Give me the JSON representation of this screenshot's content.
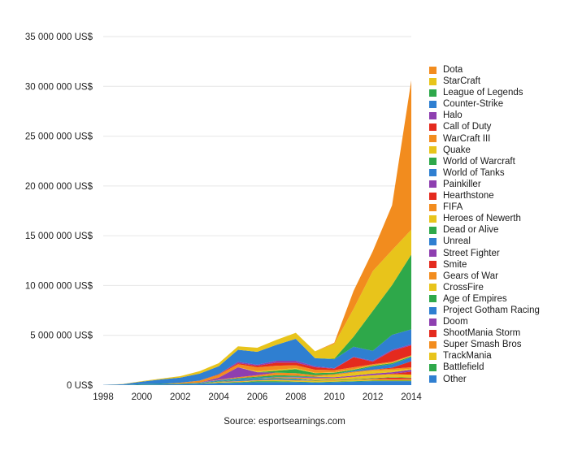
{
  "chart_data": {
    "type": "area",
    "stacked": true,
    "title": "",
    "xlabel": "",
    "ylabel": "",
    "source": "Source: esportsearnings.com",
    "ylim": [
      0,
      35000000
    ],
    "xlim": [
      1998,
      2014
    ],
    "x": [
      1998,
      1999,
      2000,
      2001,
      2002,
      2003,
      2004,
      2005,
      2006,
      2007,
      2008,
      2009,
      2010,
      2011,
      2012,
      2013,
      2014
    ],
    "y_ticks": [
      0,
      5000000,
      10000000,
      15000000,
      20000000,
      25000000,
      30000000,
      35000000
    ],
    "y_tick_labels": [
      "0 US$",
      "5 000 000 US$",
      "10 000 000 US$",
      "15 000 000 US$",
      "20 000 000 US$",
      "25 000 000 US$",
      "30 000 000 US$",
      "35 000 000 US$"
    ],
    "x_ticks": [
      1998,
      2000,
      2002,
      2004,
      2006,
      2008,
      2010,
      2012,
      2014
    ],
    "x_tick_labels": [
      "1998",
      "2000",
      "2002",
      "2004",
      "2006",
      "2008",
      "2010",
      "2012",
      "2014"
    ],
    "legend_position": "right",
    "series": [
      {
        "name": "Dota",
        "color": "#f28c1e",
        "values": [
          0,
          0,
          0,
          0,
          0,
          0,
          0,
          0,
          0,
          0,
          0,
          0,
          100000,
          1800000,
          2000000,
          4500000,
          15000000
        ]
      },
      {
        "name": "StarCraft",
        "color": "#e8c41b",
        "values": [
          0,
          20000,
          50000,
          80000,
          150000,
          250000,
          300000,
          350000,
          400000,
          500000,
          600000,
          700000,
          1500000,
          2800000,
          4000000,
          3500000,
          2500000
        ]
      },
      {
        "name": "League of Legends",
        "color": "#2ea84a",
        "values": [
          0,
          0,
          0,
          0,
          0,
          0,
          0,
          0,
          0,
          0,
          0,
          0,
          50000,
          1000000,
          4000000,
          5000000,
          7500000
        ]
      },
      {
        "name": "Counter-Strike",
        "color": "#2f7fd1",
        "values": [
          20000,
          80000,
          250000,
          450000,
          500000,
          700000,
          800000,
          1200000,
          1300000,
          1600000,
          2200000,
          800000,
          900000,
          1000000,
          1000000,
          1500000,
          1500000
        ]
      },
      {
        "name": "Halo",
        "color": "#8e3fb0",
        "values": [
          0,
          0,
          0,
          0,
          0,
          0,
          0,
          150000,
          100000,
          200000,
          200000,
          100000,
          50000,
          50000,
          100000,
          100000,
          100000
        ]
      },
      {
        "name": "Call of Duty",
        "color": "#e42a1e",
        "values": [
          0,
          0,
          0,
          0,
          0,
          0,
          50000,
          100000,
          150000,
          300000,
          250000,
          250000,
          150000,
          1000000,
          250000,
          1100000,
          1000000
        ]
      },
      {
        "name": "WarCraft III",
        "color": "#f28c1e",
        "values": [
          0,
          0,
          0,
          0,
          100000,
          200000,
          300000,
          300000,
          400000,
          400000,
          300000,
          300000,
          200000,
          200000,
          100000,
          100000,
          50000
        ]
      },
      {
        "name": "Quake",
        "color": "#e8c41b",
        "values": [
          0,
          0,
          0,
          0,
          0,
          0,
          0,
          0,
          100000,
          100000,
          100000,
          50000,
          50000,
          50000,
          50000,
          50000,
          50000
        ]
      },
      {
        "name": "World of Warcraft",
        "color": "#2ea84a",
        "values": [
          0,
          0,
          0,
          0,
          0,
          0,
          0,
          0,
          0,
          200000,
          400000,
          200000,
          150000,
          100000,
          100000,
          100000,
          100000
        ]
      },
      {
        "name": "World of Tanks",
        "color": "#2f7fd1",
        "values": [
          0,
          0,
          0,
          0,
          0,
          0,
          0,
          0,
          0,
          0,
          0,
          0,
          0,
          100000,
          300000,
          350000,
          400000
        ]
      },
      {
        "name": "Painkiller",
        "color": "#8e3fb0",
        "values": [
          0,
          0,
          0,
          0,
          0,
          0,
          200000,
          1000000,
          300000,
          0,
          0,
          0,
          0,
          0,
          0,
          0,
          0
        ]
      },
      {
        "name": "Hearthstone",
        "color": "#e42a1e",
        "values": [
          0,
          0,
          0,
          0,
          0,
          0,
          0,
          0,
          0,
          0,
          0,
          0,
          0,
          0,
          0,
          100000,
          600000
        ]
      },
      {
        "name": "FIFA",
        "color": "#f28c1e",
        "values": [
          0,
          0,
          0,
          0,
          0,
          0,
          50000,
          100000,
          150000,
          250000,
          250000,
          150000,
          100000,
          100000,
          100000,
          150000,
          150000
        ]
      },
      {
        "name": "Heroes of Newerth",
        "color": "#e8c41b",
        "values": [
          0,
          0,
          0,
          0,
          0,
          0,
          0,
          0,
          0,
          0,
          0,
          0,
          200000,
          300000,
          300000,
          200000,
          100000
        ]
      },
      {
        "name": "Dead or Alive",
        "color": "#2ea84a",
        "values": [
          0,
          0,
          0,
          0,
          0,
          0,
          0,
          50000,
          100000,
          150000,
          100000,
          50000,
          0,
          0,
          0,
          0,
          0
        ]
      },
      {
        "name": "Unreal",
        "color": "#2f7fd1",
        "values": [
          0,
          0,
          0,
          0,
          0,
          50000,
          100000,
          100000,
          100000,
          50000,
          50000,
          0,
          0,
          0,
          0,
          0,
          0
        ]
      },
      {
        "name": "Street Fighter",
        "color": "#8e3fb0",
        "values": [
          0,
          0,
          0,
          0,
          0,
          0,
          0,
          0,
          0,
          0,
          50000,
          100000,
          100000,
          100000,
          150000,
          150000,
          200000
        ]
      },
      {
        "name": "Smite",
        "color": "#e42a1e",
        "values": [
          0,
          0,
          0,
          0,
          0,
          0,
          0,
          0,
          0,
          0,
          0,
          0,
          0,
          0,
          0,
          50000,
          300000
        ]
      },
      {
        "name": "Gears of War",
        "color": "#f28c1e",
        "values": [
          0,
          0,
          0,
          0,
          0,
          0,
          0,
          0,
          0,
          100000,
          100000,
          100000,
          50000,
          50000,
          0,
          0,
          0
        ]
      },
      {
        "name": "CrossFire",
        "color": "#e8c41b",
        "values": [
          0,
          0,
          0,
          0,
          0,
          0,
          0,
          0,
          0,
          0,
          0,
          100000,
          100000,
          200000,
          300000,
          300000,
          300000
        ]
      },
      {
        "name": "Age of Empires",
        "color": "#2ea84a",
        "values": [
          0,
          0,
          50000,
          50000,
          50000,
          50000,
          50000,
          50000,
          50000,
          50000,
          50000,
          50000,
          50000,
          50000,
          50000,
          50000,
          50000
        ]
      },
      {
        "name": "Project Gotham Racing",
        "color": "#2f7fd1",
        "values": [
          0,
          0,
          0,
          0,
          0,
          0,
          0,
          100000,
          100000,
          100000,
          100000,
          0,
          0,
          0,
          0,
          0,
          0
        ]
      },
      {
        "name": "Doom",
        "color": "#8e3fb0",
        "values": [
          0,
          0,
          0,
          0,
          0,
          0,
          0,
          0,
          0,
          0,
          0,
          0,
          0,
          0,
          0,
          0,
          0
        ]
      },
      {
        "name": "ShootMania Storm",
        "color": "#e42a1e",
        "values": [
          0,
          0,
          0,
          0,
          0,
          0,
          0,
          0,
          0,
          0,
          0,
          0,
          0,
          0,
          50000,
          150000,
          100000
        ]
      },
      {
        "name": "Super Smash Bros",
        "color": "#f28c1e",
        "values": [
          0,
          0,
          0,
          0,
          0,
          0,
          50000,
          50000,
          50000,
          50000,
          50000,
          50000,
          50000,
          50000,
          50000,
          100000,
          100000
        ]
      },
      {
        "name": "TrackMania",
        "color": "#e8c41b",
        "values": [
          0,
          0,
          0,
          0,
          0,
          0,
          50000,
          50000,
          50000,
          100000,
          100000,
          100000,
          100000,
          100000,
          100000,
          50000,
          50000
        ]
      },
      {
        "name": "Battlefield",
        "color": "#2ea84a",
        "values": [
          0,
          0,
          0,
          0,
          0,
          0,
          50000,
          50000,
          100000,
          100000,
          50000,
          50000,
          50000,
          50000,
          50000,
          50000,
          50000
        ]
      },
      {
        "name": "Other",
        "color": "#2f7fd1",
        "values": [
          0,
          10000,
          50000,
          70000,
          100000,
          150000,
          200000,
          250000,
          300000,
          300000,
          300000,
          250000,
          300000,
          350000,
          400000,
          400000,
          400000
        ]
      }
    ]
  }
}
